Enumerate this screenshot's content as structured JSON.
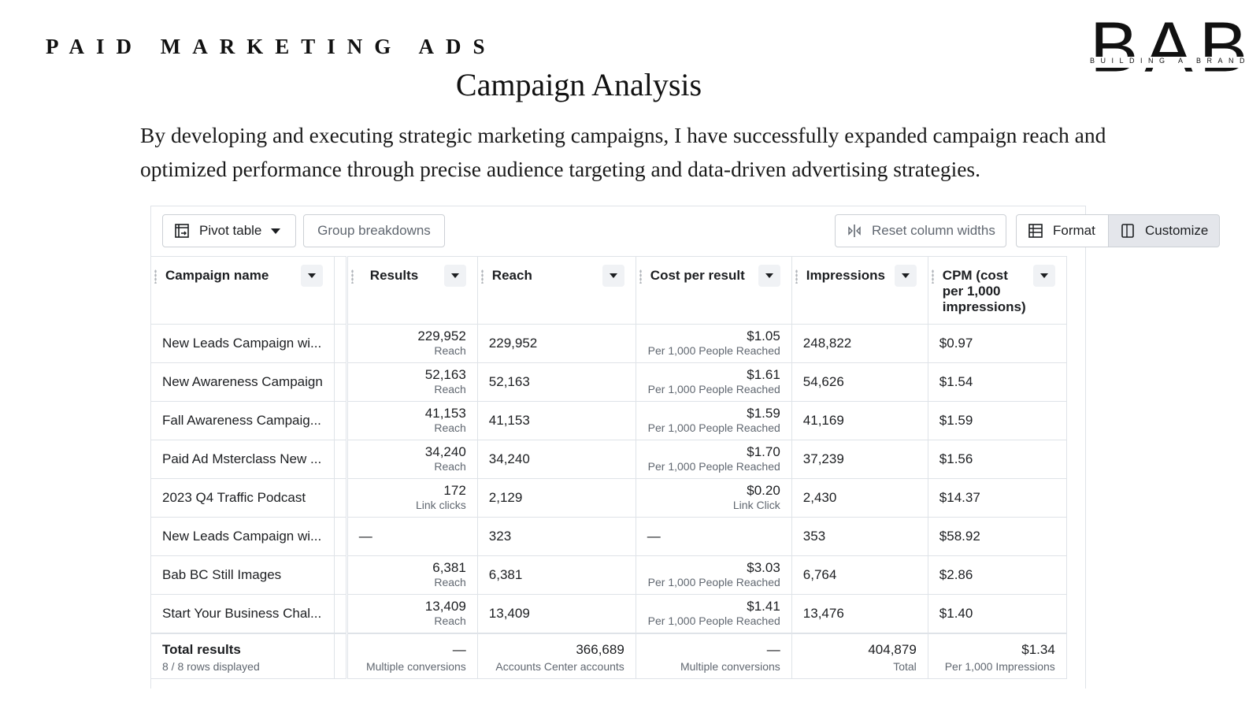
{
  "header": {
    "section_title": "PAID MARKETING ADS",
    "page_title": "Campaign Analysis",
    "intro": "By developing and executing strategic marketing campaigns, I have successfully expanded campaign reach and optimized performance through precise audience targeting and data-driven advertising strategies."
  },
  "logo": {
    "letters": "BAB",
    "tagline": "BUILDING A BRAND"
  },
  "toolbar": {
    "pivot_table": "Pivot table",
    "group_breakdowns": "Group breakdowns",
    "reset_column_widths": "Reset column widths",
    "format": "Format",
    "customize": "Customize"
  },
  "columns": {
    "campaign_name": "Campaign name",
    "results": "Results",
    "reach": "Reach",
    "cost_per_result": "Cost per result",
    "impressions": "Impressions",
    "cpm": "CPM (cost per 1,000 impressions)"
  },
  "rows": [
    {
      "name": "New Leads Campaign wi...",
      "results": "229,952",
      "results_type": "Reach",
      "reach": "229,952",
      "cost": "$1.05",
      "cost_type": "Per 1,000 People Reached",
      "impressions": "248,822",
      "cpm": "$0.97"
    },
    {
      "name": "New Awareness Campaign",
      "results": "52,163",
      "results_type": "Reach",
      "reach": "52,163",
      "cost": "$1.61",
      "cost_type": "Per 1,000 People Reached",
      "impressions": "54,626",
      "cpm": "$1.54"
    },
    {
      "name": "Fall Awareness Campaig...",
      "results": "41,153",
      "results_type": "Reach",
      "reach": "41,153",
      "cost": "$1.59",
      "cost_type": "Per 1,000 People Reached",
      "impressions": "41,169",
      "cpm": "$1.59"
    },
    {
      "name": "Paid Ad Msterclass New ...",
      "results": "34,240",
      "results_type": "Reach",
      "reach": "34,240",
      "cost": "$1.70",
      "cost_type": "Per 1,000 People Reached",
      "impressions": "37,239",
      "cpm": "$1.56"
    },
    {
      "name": "2023 Q4 Traffic Podcast",
      "results": "172",
      "results_type": "Link clicks",
      "reach": "2,129",
      "cost": "$0.20",
      "cost_type": "Link Click",
      "impressions": "2,430",
      "cpm": "$14.37"
    },
    {
      "name": "New Leads Campaign wi...",
      "results": "—",
      "reach": "323",
      "cost": "—",
      "impressions": "353",
      "cpm": "$58.92"
    },
    {
      "name": "Bab BC Still Images",
      "results": "6,381",
      "results_type": "Reach",
      "reach": "6,381",
      "cost": "$3.03",
      "cost_type": "Per 1,000 People Reached",
      "impressions": "6,764",
      "cpm": "$2.86"
    },
    {
      "name": "Start Your Business Chal...",
      "results": "13,409",
      "results_type": "Reach",
      "reach": "13,409",
      "cost": "$1.41",
      "cost_type": "Per 1,000 People Reached",
      "impressions": "13,476",
      "cpm": "$1.40"
    }
  ],
  "totals": {
    "label": "Total results",
    "rows_displayed": "8 / 8 rows displayed",
    "results": "—",
    "results_sub": "Multiple conversions",
    "reach": "366,689",
    "reach_sub": "Accounts Center accounts",
    "cost": "—",
    "cost_sub": "Multiple conversions",
    "impressions": "404,879",
    "impressions_sub": "Total",
    "cpm": "$1.34",
    "cpm_sub": "Per 1,000 Impressions"
  }
}
